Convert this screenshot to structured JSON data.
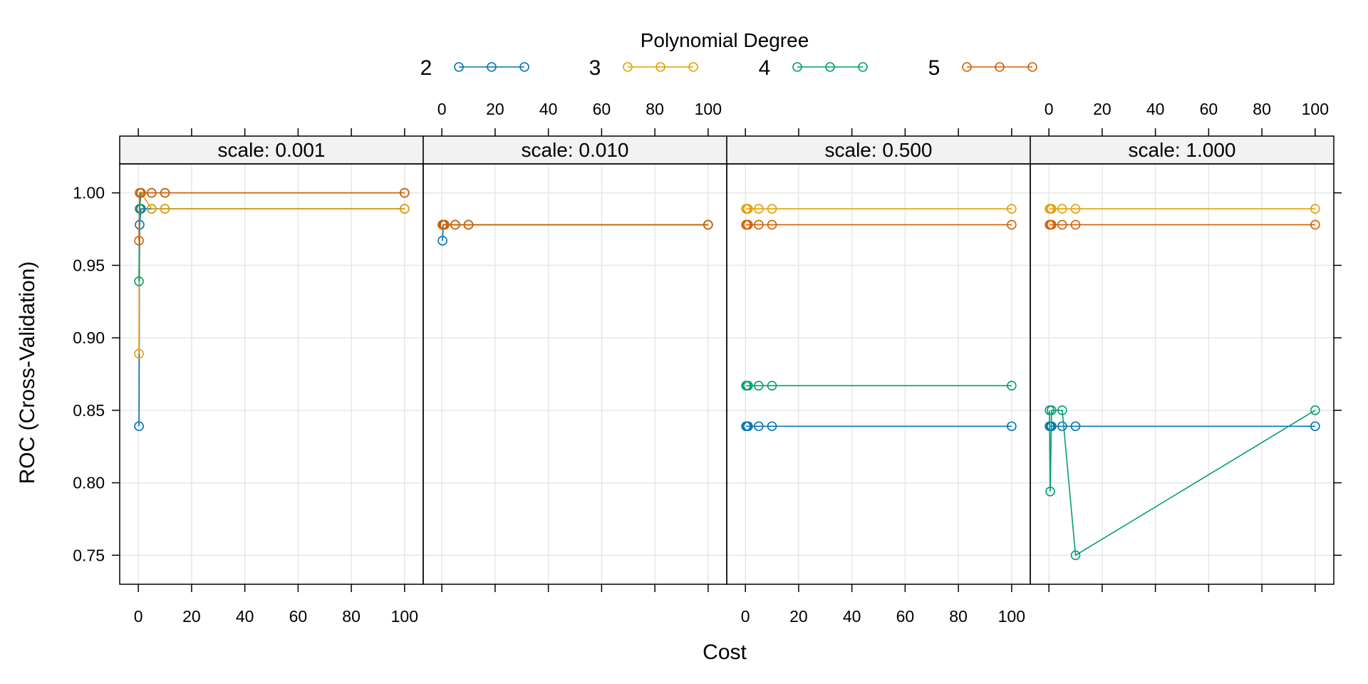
{
  "chart_data": {
    "type": "line",
    "xlabel": "Cost",
    "ylabel": "ROC (Cross-Validation)",
    "xlim": [
      -7,
      107
    ],
    "ylim": [
      0.73,
      1.02
    ],
    "x_ticks": [
      0,
      20,
      40,
      60,
      80,
      100
    ],
    "y_ticks": [
      0.75,
      0.8,
      0.85,
      0.9,
      0.95,
      1.0
    ],
    "y_tick_labels": [
      "0.75",
      "0.80",
      "0.85",
      "0.90",
      "0.95",
      "1.00"
    ],
    "grid": true,
    "legend": {
      "title": "Polynomial Degree",
      "position": "top",
      "entries": [
        "2",
        "3",
        "4",
        "5"
      ]
    },
    "colors": {
      "2": "#0072B2",
      "3": "#E69F00",
      "4": "#009E73",
      "5": "#D55E00"
    },
    "x": [
      0.25,
      0.5,
      1,
      5,
      10,
      100
    ],
    "panels": [
      {
        "strip": "scale: 0.001",
        "series": [
          {
            "name": "2",
            "y": [
              0.839,
              0.978,
              0.989,
              0.989,
              0.989,
              0.989
            ]
          },
          {
            "name": "3",
            "y": [
              0.889,
              0.989,
              1.0,
              0.989,
              0.989,
              0.989
            ]
          },
          {
            "name": "4",
            "y": [
              0.939,
              0.989,
              1.0,
              1.0,
              1.0,
              1.0
            ]
          },
          {
            "name": "5",
            "y": [
              0.967,
              1.0,
              1.0,
              1.0,
              1.0,
              1.0
            ]
          }
        ]
      },
      {
        "strip": "scale: 0.010",
        "series": [
          {
            "name": "2",
            "y": [
              0.967,
              0.978,
              0.978,
              0.978,
              0.978,
              0.978
            ]
          },
          {
            "name": "3",
            "y": [
              0.978,
              0.978,
              0.978,
              0.978,
              0.978,
              0.978
            ]
          },
          {
            "name": "4",
            "y": [
              0.978,
              0.978,
              0.978,
              0.978,
              0.978,
              0.978
            ]
          },
          {
            "name": "5",
            "y": [
              0.978,
              0.978,
              0.978,
              0.978,
              0.978,
              0.978
            ]
          }
        ]
      },
      {
        "strip": "scale: 0.500",
        "series": [
          {
            "name": "2",
            "y": [
              0.839,
              0.839,
              0.839,
              0.839,
              0.839,
              0.839
            ]
          },
          {
            "name": "3",
            "y": [
              0.989,
              0.989,
              0.989,
              0.989,
              0.989,
              0.989
            ]
          },
          {
            "name": "4",
            "y": [
              0.867,
              0.867,
              0.867,
              0.867,
              0.867,
              0.867
            ]
          },
          {
            "name": "5",
            "y": [
              0.978,
              0.978,
              0.978,
              0.978,
              0.978,
              0.978
            ]
          }
        ]
      },
      {
        "strip": "scale: 1.000",
        "series": [
          {
            "name": "2",
            "y": [
              0.839,
              0.839,
              0.839,
              0.839,
              0.839,
              0.839
            ]
          },
          {
            "name": "3",
            "y": [
              0.989,
              0.989,
              0.989,
              0.989,
              0.989,
              0.989
            ]
          },
          {
            "name": "4",
            "y": [
              0.85,
              0.794,
              0.85,
              0.85,
              0.75,
              0.85
            ]
          },
          {
            "name": "5",
            "y": [
              0.978,
              0.978,
              0.978,
              0.978,
              0.978,
              0.978
            ]
          }
        ]
      }
    ]
  }
}
